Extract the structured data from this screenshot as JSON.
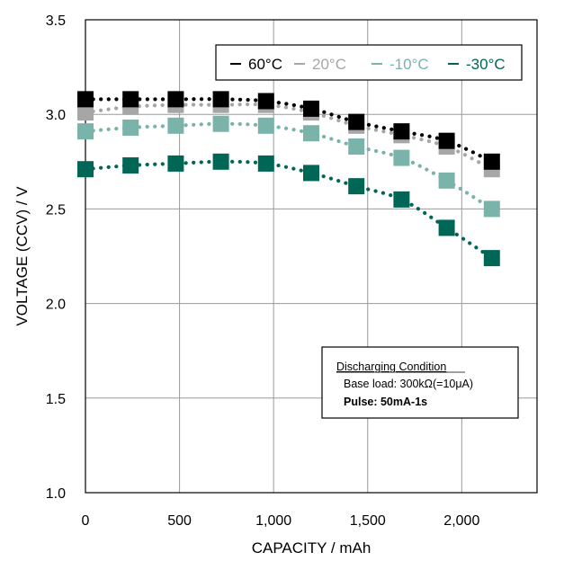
{
  "chart_data": {
    "type": "scatter",
    "title": "",
    "xlabel": "CAPACITY / mAh",
    "ylabel": "VOLTAGE (CCV) / V",
    "xlim": [
      0,
      2400
    ],
    "ylim": [
      1.0,
      3.5
    ],
    "x_ticks": [
      0,
      500,
      1000,
      1500,
      2000
    ],
    "x_tick_labels": [
      "0",
      "500",
      "1,000",
      "1,500",
      "2,000"
    ],
    "y_ticks": [
      1.0,
      1.5,
      2.0,
      2.5,
      3.0,
      3.5
    ],
    "y_tick_labels": [
      "1.0",
      "1.5",
      "2.0",
      "2.5",
      "3.0",
      "3.5"
    ],
    "grid": true,
    "legend_position": "top-right",
    "series": [
      {
        "name": "60°C",
        "color": "#000000",
        "x": [
          0,
          240,
          480,
          720,
          960,
          1200,
          1440,
          1680,
          1920,
          2160
        ],
        "y": [
          3.08,
          3.08,
          3.08,
          3.08,
          3.07,
          3.03,
          2.96,
          2.91,
          2.86,
          2.75
        ]
      },
      {
        "name": "20°C",
        "color": "#a6a6a6",
        "x": [
          0,
          240,
          480,
          720,
          960,
          1200,
          1440,
          1680,
          1920,
          2160
        ],
        "y": [
          3.01,
          3.04,
          3.05,
          3.05,
          3.05,
          3.01,
          2.94,
          2.89,
          2.83,
          2.71
        ]
      },
      {
        "name": "-10°C",
        "color": "#7ab3aa",
        "x": [
          0,
          240,
          480,
          720,
          960,
          1200,
          1440,
          1680,
          1920,
          2160
        ],
        "y": [
          2.91,
          2.93,
          2.94,
          2.95,
          2.94,
          2.9,
          2.83,
          2.77,
          2.65,
          2.5
        ]
      },
      {
        "name": "-30°C",
        "color": "#006655",
        "x": [
          0,
          240,
          480,
          720,
          960,
          1200,
          1440,
          1680,
          1920,
          2160
        ],
        "y": [
          2.71,
          2.73,
          2.74,
          2.75,
          2.74,
          2.69,
          2.62,
          2.55,
          2.4,
          2.24
        ]
      }
    ],
    "annotation": {
      "heading": "Discharging Condition",
      "line1": "Base load: 300kΩ(=10μA)",
      "line2": "Pulse: 50mA-1s"
    }
  }
}
